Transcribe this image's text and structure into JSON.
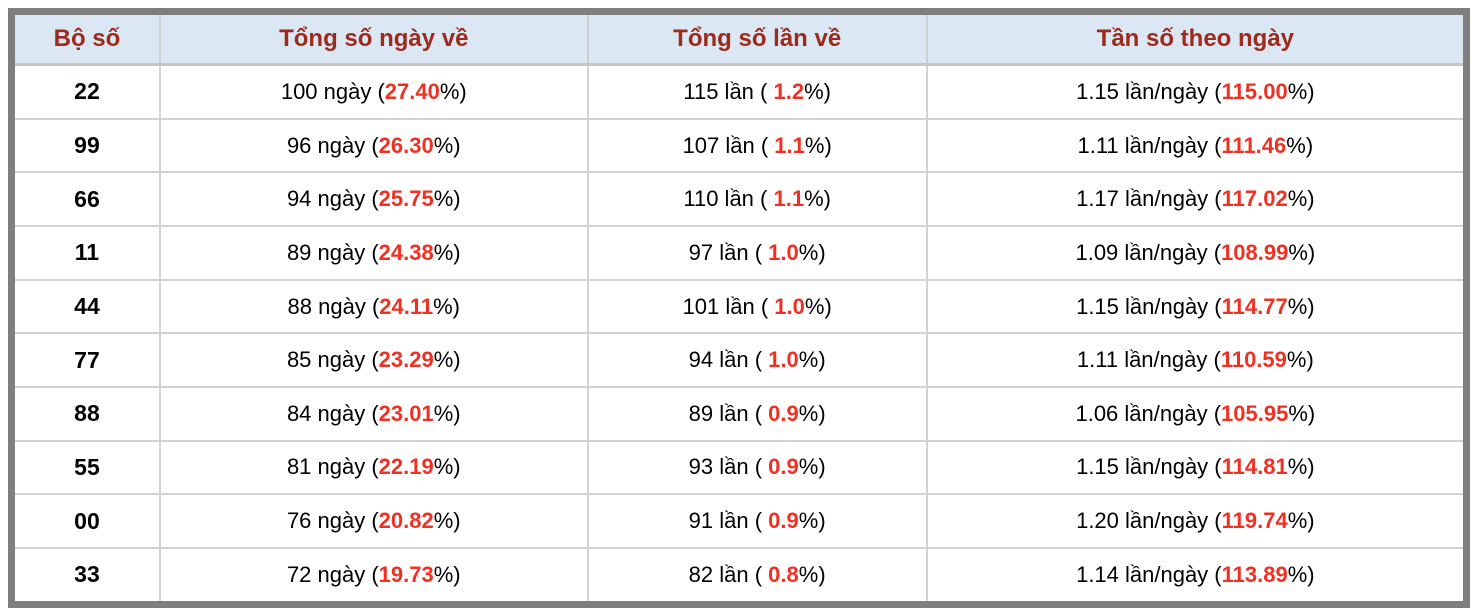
{
  "table": {
    "columns": [
      {
        "key": "pair",
        "label": "Bộ số"
      },
      {
        "key": "days",
        "label": "Tổng số ngày về"
      },
      {
        "key": "times",
        "label": "Tổng số lần về"
      },
      {
        "key": "freq",
        "label": "Tần số theo ngày"
      }
    ],
    "rows": [
      {
        "pair": "22",
        "days": {
          "pre": "100 ngày (",
          "val": "27.40",
          "post": "%)"
        },
        "times": {
          "pre": "115 lần ( ",
          "val": "1.2",
          "post": "%)"
        },
        "freq": {
          "pre": "1.15 lần/ngày (",
          "val": "115.00",
          "post": "%)"
        }
      },
      {
        "pair": "99",
        "days": {
          "pre": "96 ngày (",
          "val": "26.30",
          "post": "%)"
        },
        "times": {
          "pre": "107 lần ( ",
          "val": "1.1",
          "post": "%)"
        },
        "freq": {
          "pre": "1.11 lần/ngày (",
          "val": "111.46",
          "post": "%)"
        }
      },
      {
        "pair": "66",
        "days": {
          "pre": "94 ngày (",
          "val": "25.75",
          "post": "%)"
        },
        "times": {
          "pre": "110 lần ( ",
          "val": "1.1",
          "post": "%)"
        },
        "freq": {
          "pre": "1.17 lần/ngày (",
          "val": "117.02",
          "post": "%)"
        }
      },
      {
        "pair": "11",
        "days": {
          "pre": "89 ngày (",
          "val": "24.38",
          "post": "%)"
        },
        "times": {
          "pre": "97 lần ( ",
          "val": "1.0",
          "post": "%)"
        },
        "freq": {
          "pre": "1.09 lần/ngày (",
          "val": "108.99",
          "post": "%)"
        }
      },
      {
        "pair": "44",
        "days": {
          "pre": "88 ngày (",
          "val": "24.11",
          "post": "%)"
        },
        "times": {
          "pre": "101 lần ( ",
          "val": "1.0",
          "post": "%)"
        },
        "freq": {
          "pre": "1.15 lần/ngày (",
          "val": "114.77",
          "post": "%)"
        }
      },
      {
        "pair": "77",
        "days": {
          "pre": "85 ngày (",
          "val": "23.29",
          "post": "%)"
        },
        "times": {
          "pre": "94 lần ( ",
          "val": "1.0",
          "post": "%)"
        },
        "freq": {
          "pre": "1.11 lần/ngày (",
          "val": "110.59",
          "post": "%)"
        }
      },
      {
        "pair": "88",
        "days": {
          "pre": "84 ngày (",
          "val": "23.01",
          "post": "%)"
        },
        "times": {
          "pre": "89 lần ( ",
          "val": "0.9",
          "post": "%)"
        },
        "freq": {
          "pre": "1.06 lần/ngày (",
          "val": "105.95",
          "post": "%)"
        }
      },
      {
        "pair": "55",
        "days": {
          "pre": "81 ngày (",
          "val": "22.19",
          "post": "%)"
        },
        "times": {
          "pre": "93 lần ( ",
          "val": "0.9",
          "post": "%)"
        },
        "freq": {
          "pre": "1.15 lần/ngày (",
          "val": "114.81",
          "post": "%)"
        }
      },
      {
        "pair": "00",
        "days": {
          "pre": "76 ngày (",
          "val": "20.82",
          "post": "%)"
        },
        "times": {
          "pre": "91 lần ( ",
          "val": "0.9",
          "post": "%)"
        },
        "freq": {
          "pre": "1.20 lần/ngày (",
          "val": "119.74",
          "post": "%)"
        }
      },
      {
        "pair": "33",
        "days": {
          "pre": "72 ngày (",
          "val": "19.73",
          "post": "%)"
        },
        "times": {
          "pre": "82 lần ( ",
          "val": "0.8",
          "post": "%)"
        },
        "freq": {
          "pre": "1.14 lần/ngày (",
          "val": "113.89",
          "post": "%)"
        }
      }
    ]
  },
  "colors": {
    "accent_red": "#ee3123",
    "header_text": "#9c2a1d",
    "header_bg": "#dbe8f4",
    "frame_gray": "#7e7e7e",
    "grid_line": "#d2d2d2"
  },
  "chart_data": {
    "type": "table",
    "columns": [
      "Bộ số",
      "Tổng số ngày về",
      "Tổng số lần về",
      "Tần số theo ngày"
    ],
    "rows": [
      [
        "22",
        "100 ngày (27.40%)",
        "115 lần ( 1.2%)",
        "1.15 lần/ngày (115.00%)"
      ],
      [
        "99",
        "96 ngày (26.30%)",
        "107 lần ( 1.1%)",
        "1.11 lần/ngày (111.46%)"
      ],
      [
        "66",
        "94 ngày (25.75%)",
        "110 lần ( 1.1%)",
        "1.17 lần/ngày (117.02%)"
      ],
      [
        "11",
        "89 ngày (24.38%)",
        "97 lần ( 1.0%)",
        "1.09 lần/ngày (108.99%)"
      ],
      [
        "44",
        "88 ngày (24.11%)",
        "101 lần ( 1.0%)",
        "1.15 lần/ngày (114.77%)"
      ],
      [
        "77",
        "85 ngày (23.29%)",
        "94 lần ( 1.0%)",
        "1.11 lần/ngày (110.59%)"
      ],
      [
        "88",
        "84 ngày (23.01%)",
        "89 lần ( 0.9%)",
        "1.06 lần/ngày (105.95%)"
      ],
      [
        "55",
        "81 ngày (22.19%)",
        "93 lần ( 0.9%)",
        "1.15 lần/ngày (114.81%)"
      ],
      [
        "00",
        "76 ngày (20.82%)",
        "91 lần ( 0.9%)",
        "1.20 lần/ngày (119.74%)"
      ],
      [
        "33",
        "72 ngày (19.73%)",
        "82 lần ( 0.8%)",
        "1.14 lần/ngày (113.89%)"
      ]
    ],
    "layout_hints": {
      "highlight_color": "#ee3123",
      "highlighted_parts": "percentage values inside parentheses",
      "header_style": "bold dark-red text on pale blue background",
      "outer_border": "thick gray frame"
    }
  }
}
